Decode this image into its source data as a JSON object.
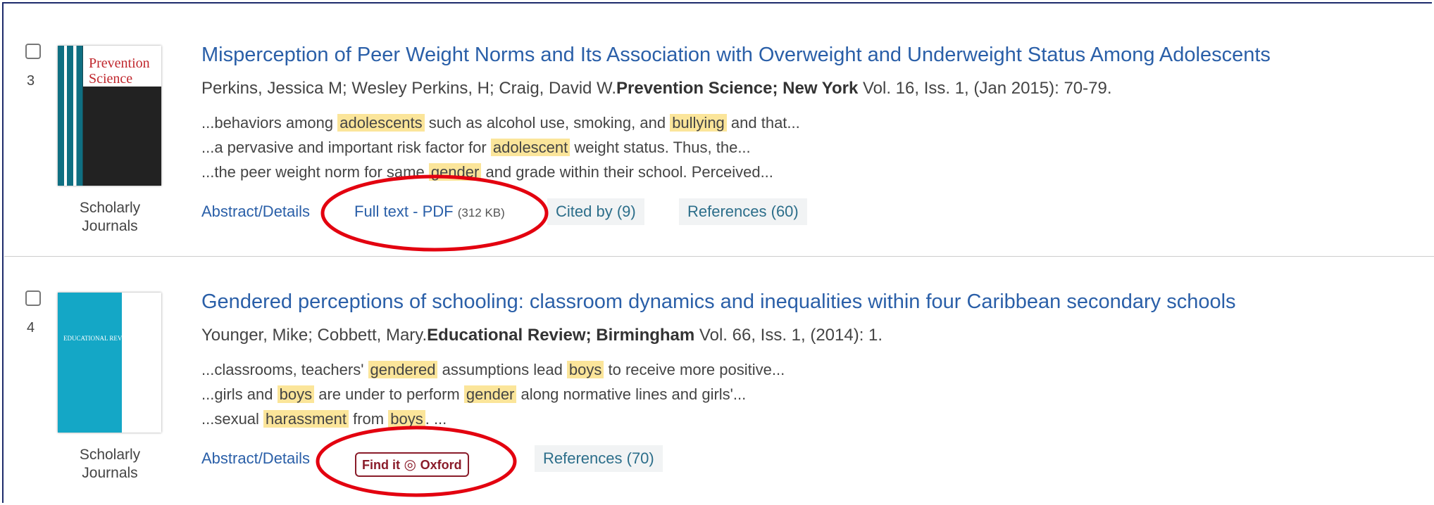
{
  "results": [
    {
      "number": "3",
      "type_label": "Scholarly Journals",
      "cover_text": [
        "Prevention",
        "Science"
      ],
      "title": "Misperception of Peer Weight Norms and Its Association with Overweight and Underweight Status Among Adolescents",
      "authors": "Perkins, Jessica M; Wesley Perkins, H; Craig, David W.",
      "source": "Prevention Science; New York",
      "citation": " Vol. 16, Iss. 1,  (Jan 2015): 70-79.",
      "snippets": [
        [
          "...behaviors among ",
          "adolescents",
          " such as alcohol use, smoking, and ",
          "bullying",
          " and that..."
        ],
        [
          "...a pervasive and important risk factor for ",
          "adolescent",
          " weight status. Thus, the..."
        ],
        [
          "...the peer weight norm for same ",
          "gender",
          " and grade within their school. Perceived..."
        ]
      ],
      "links": {
        "abstract": "Abstract/Details",
        "full_text": "Full text - PDF",
        "full_text_size": "(312 KB)",
        "cited_by": "Cited by (9)",
        "references": "References (60)"
      }
    },
    {
      "number": "4",
      "type_label": "Scholarly Journals",
      "cover_text": [
        "EDUCATIONAL REVIEW"
      ],
      "title": "Gendered perceptions of schooling: classroom dynamics and inequalities within four Caribbean secondary schools",
      "authors": "Younger, Mike; Cobbett, Mary.",
      "source": "Educational Review; Birmingham",
      "citation": " Vol. 66, Iss. 1,  (2014): 1.",
      "snippets": [
        [
          "...classrooms, teachers' ",
          "gendered",
          " assumptions lead ",
          "boys",
          " to receive more positive..."
        ],
        [
          "...girls and ",
          "boys",
          " are under to perform ",
          "gender",
          " along normative lines and girls'..."
        ],
        [
          "...sexual ",
          "harassment",
          " from ",
          "boys",
          ". ..."
        ]
      ],
      "links": {
        "abstract": "Abstract/Details",
        "find_it": [
          "Find it",
          "Oxford"
        ],
        "references": "References (70)"
      }
    }
  ]
}
